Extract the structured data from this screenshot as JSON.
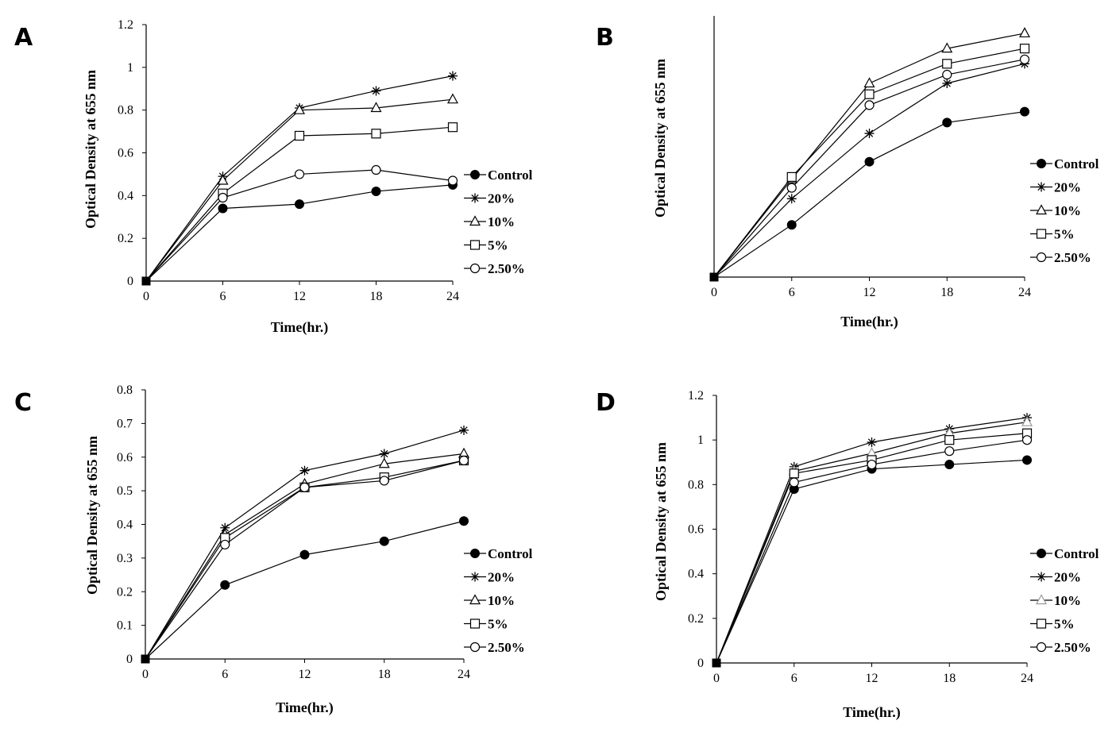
{
  "chart_data": [
    {
      "panel": "A",
      "type": "line",
      "xlabel": "Time(hr.)",
      "ylabel": "Optical Density at 655 nm",
      "x": [
        0,
        6,
        12,
        18,
        24
      ],
      "xticks": [
        "0",
        "6",
        "12",
        "18",
        "24"
      ],
      "ylim": [
        0,
        1.2
      ],
      "yticks": [
        "0",
        "0.2",
        "0.4",
        "0.6",
        "0.8",
        "1",
        "1.2"
      ],
      "show_y_ticks": true,
      "grid": false,
      "legend_position": "right",
      "series": [
        {
          "name": "Control",
          "marker": "filled-circle",
          "values": [
            0,
            0.34,
            0.36,
            0.42,
            0.45
          ]
        },
        {
          "name": "20%",
          "marker": "star",
          "values": [
            0,
            0.49,
            0.81,
            0.89,
            0.96
          ]
        },
        {
          "name": "10%",
          "marker": "triangle",
          "values": [
            0,
            0.47,
            0.8,
            0.81,
            0.85
          ]
        },
        {
          "name": "5%",
          "marker": "square",
          "values": [
            0,
            0.41,
            0.68,
            0.69,
            0.72
          ]
        },
        {
          "name": "2.50%",
          "marker": "circle",
          "values": [
            0,
            0.39,
            0.5,
            0.52,
            0.47
          ]
        }
      ]
    },
    {
      "panel": "B",
      "type": "line",
      "xlabel": "Time(hr.)",
      "ylabel": "Optical Density at 655 nm",
      "x": [
        0,
        6,
        12,
        18,
        24
      ],
      "xticks": [
        "0",
        "6",
        "12",
        "18",
        "24"
      ],
      "ylim": [
        0,
        1.2
      ],
      "yticks": [],
      "show_y_ticks": false,
      "grid": false,
      "legend_position": "right",
      "series": [
        {
          "name": "Control",
          "marker": "filled-circle",
          "values": [
            0,
            0.24,
            0.53,
            0.71,
            0.76
          ]
        },
        {
          "name": "20%",
          "marker": "star",
          "values": [
            0,
            0.36,
            0.66,
            0.89,
            0.98
          ]
        },
        {
          "name": "10%",
          "marker": "triangle",
          "values": [
            0,
            0.45,
            0.89,
            1.05,
            1.12
          ]
        },
        {
          "name": "5%",
          "marker": "square",
          "values": [
            0,
            0.46,
            0.84,
            0.98,
            1.05
          ]
        },
        {
          "name": "2.50%",
          "marker": "circle",
          "values": [
            0,
            0.41,
            0.79,
            0.93,
            1.0
          ]
        }
      ]
    },
    {
      "panel": "C",
      "type": "line",
      "xlabel": "Time(hr.)",
      "ylabel": "Optical Density at 655 nm",
      "x": [
        0,
        6,
        12,
        18,
        24
      ],
      "xticks": [
        "0",
        "6",
        "12",
        "18",
        "24"
      ],
      "ylim": [
        0,
        0.8
      ],
      "yticks": [
        "0",
        "0.1",
        "0.2",
        "0.3",
        "0.4",
        "0.5",
        "0.6",
        "0.7",
        "0.8"
      ],
      "show_y_ticks": true,
      "grid": false,
      "legend_position": "right",
      "series": [
        {
          "name": "Control",
          "marker": "filled-circle",
          "values": [
            0,
            0.22,
            0.31,
            0.35,
            0.41
          ]
        },
        {
          "name": "20%",
          "marker": "star",
          "values": [
            0,
            0.39,
            0.56,
            0.61,
            0.68
          ]
        },
        {
          "name": "10%",
          "marker": "triangle",
          "values": [
            0,
            0.37,
            0.52,
            0.58,
            0.61
          ]
        },
        {
          "name": "5%",
          "marker": "square",
          "values": [
            0,
            0.36,
            0.51,
            0.54,
            0.59
          ]
        },
        {
          "name": "2.50%",
          "marker": "circle",
          "values": [
            0,
            0.34,
            0.51,
            0.53,
            0.59
          ]
        }
      ]
    },
    {
      "panel": "D",
      "type": "line",
      "xlabel": "Time(hr.)",
      "ylabel": "Optical Density at 655 nm",
      "x": [
        0,
        6,
        12,
        18,
        24
      ],
      "xticks": [
        "0",
        "6",
        "12",
        "18",
        "24"
      ],
      "ylim": [
        0,
        1.2
      ],
      "yticks": [
        "0",
        "0.2",
        "0.4",
        "0.6",
        "0.8",
        "1",
        "1.2"
      ],
      "show_y_ticks": true,
      "grid": false,
      "legend_position": "bottom-right",
      "series": [
        {
          "name": "Control",
          "marker": "filled-circle",
          "values": [
            0,
            0.78,
            0.87,
            0.89,
            0.91
          ]
        },
        {
          "name": "20%",
          "marker": "star",
          "values": [
            0,
            0.88,
            0.99,
            1.05,
            1.1
          ]
        },
        {
          "name": "10%",
          "marker": "triangle",
          "color": "#999999",
          "values": [
            0,
            0.86,
            0.94,
            1.03,
            1.08
          ]
        },
        {
          "name": "5%",
          "marker": "square",
          "values": [
            0,
            0.85,
            0.91,
            1.0,
            1.03
          ]
        },
        {
          "name": "2.50%",
          "marker": "circle",
          "values": [
            0,
            0.81,
            0.89,
            0.95,
            1.0
          ]
        }
      ]
    }
  ]
}
